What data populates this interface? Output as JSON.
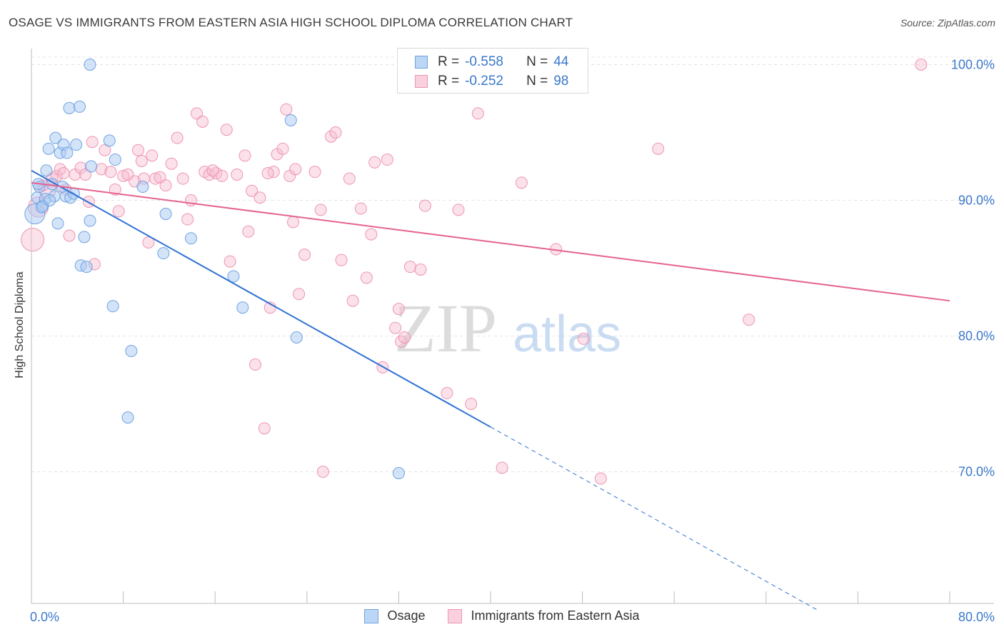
{
  "title": "OSAGE VS IMMIGRANTS FROM EASTERN ASIA HIGH SCHOOL DIPLOMA CORRELATION CHART",
  "source": "Source: ZipAtlas.com",
  "watermark": {
    "zip": "ZIP",
    "atlas": "atlas"
  },
  "legend_top": {
    "rows": [
      {
        "r_label": "R =",
        "r_value": "-0.558",
        "n_label": "N =",
        "n_value": "44"
      },
      {
        "r_label": "R =",
        "r_value": "-0.252",
        "n_label": "N =",
        "n_value": "98"
      }
    ]
  },
  "legend_bottom": [
    {
      "label": "Osage"
    },
    {
      "label": "Immigrants from Eastern Asia"
    }
  ],
  "colors": {
    "osage_fill": "#a9c9f2",
    "osage_stroke": "#6fa3e3",
    "osage_line": "#2f72d4",
    "asia_fill": "#f7bdd0",
    "asia_stroke": "#ee95b3",
    "asia_line": "#e5628f",
    "tick_label": "#3a78cc",
    "grid": "#e3e3e3"
  },
  "chart_data": {
    "type": "scatter",
    "title": "OSAGE VS IMMIGRANTS FROM EASTERN ASIA HIGH SCHOOL DIPLOMA CORRELATION CHART",
    "xlabel": "",
    "ylabel": "High School Diploma",
    "xlim": [
      0,
      80
    ],
    "ylim": [
      60.3,
      101.5
    ],
    "x_tick_labels": [
      "0.0%",
      "80.0%"
    ],
    "y_ticks": [
      70,
      80,
      90,
      100
    ],
    "y_tick_labels": [
      "70.0%",
      "80.0%",
      "90.0%",
      "100.0%"
    ],
    "grid": true,
    "legend_placement": "top-center",
    "series": [
      {
        "name": "Osage",
        "r": -0.558,
        "n": 44,
        "trend": {
          "x0": 0,
          "y0": 92.2,
          "x1": 40,
          "y1": 73.3,
          "dash_to_x": 68.5,
          "dash_to_y": 59.8
        },
        "points": [
          [
            0.3,
            89.0,
            14
          ],
          [
            0.5,
            90.2,
            8
          ],
          [
            0.7,
            91.0,
            8
          ],
          [
            1.0,
            89.6,
            8
          ],
          [
            1.2,
            90.1,
            8
          ],
          [
            1.3,
            92.2,
            8
          ],
          [
            1.5,
            93.8,
            8
          ],
          [
            1.8,
            91.2,
            8
          ],
          [
            2.0,
            90.3,
            8
          ],
          [
            2.1,
            94.6,
            8
          ],
          [
            2.3,
            88.3,
            8
          ],
          [
            2.5,
            93.5,
            8
          ],
          [
            2.8,
            94.1,
            8
          ],
          [
            3.0,
            90.3,
            8
          ],
          [
            3.1,
            93.5,
            8
          ],
          [
            3.4,
            90.2,
            8
          ],
          [
            3.3,
            96.8,
            8
          ],
          [
            3.9,
            94.1,
            8
          ],
          [
            4.2,
            96.9,
            8
          ],
          [
            4.3,
            85.2,
            8
          ],
          [
            4.6,
            87.3,
            8
          ],
          [
            4.8,
            85.1,
            8
          ],
          [
            5.1,
            88.5,
            8
          ],
          [
            5.2,
            92.5,
            8
          ],
          [
            6.8,
            94.4,
            8
          ],
          [
            7.1,
            82.2,
            8
          ],
          [
            7.3,
            93.0,
            8
          ],
          [
            8.4,
            74.0,
            8
          ],
          [
            8.7,
            78.9,
            8
          ],
          [
            9.7,
            91.0,
            8
          ],
          [
            11.5,
            86.1,
            8
          ],
          [
            11.7,
            89.0,
            8
          ],
          [
            13.9,
            87.2,
            8
          ],
          [
            17.6,
            84.4,
            8
          ],
          [
            18.4,
            82.1,
            8
          ],
          [
            22.6,
            95.9,
            8
          ],
          [
            23.1,
            79.9,
            8
          ],
          [
            32.0,
            69.9,
            8
          ],
          [
            5.1,
            100.0,
            8
          ],
          [
            0.6,
            91.2,
            8
          ],
          [
            1.6,
            90.0,
            8
          ],
          [
            2.7,
            91.0,
            8
          ],
          [
            0.9,
            89.5,
            8
          ],
          [
            3.7,
            90.5,
            8
          ]
        ]
      },
      {
        "name": "Immigrants from Eastern Asia",
        "r": -0.252,
        "n": 98,
        "trend": {
          "x0": 0,
          "y0": 91.3,
          "x1": 80,
          "y1": 82.6
        },
        "points": [
          [
            0.1,
            87.1,
            16
          ],
          [
            0.6,
            89.5,
            14
          ],
          [
            1.4,
            90.8,
            12
          ],
          [
            1.8,
            91.6,
            8
          ],
          [
            2.2,
            91.8,
            8
          ],
          [
            2.5,
            92.3,
            8
          ],
          [
            2.8,
            92.0,
            8
          ],
          [
            3.3,
            87.4,
            8
          ],
          [
            3.8,
            91.9,
            8
          ],
          [
            4.3,
            92.4,
            8
          ],
          [
            4.7,
            91.9,
            8
          ],
          [
            5.0,
            89.9,
            8
          ],
          [
            5.3,
            94.3,
            8
          ],
          [
            5.5,
            85.3,
            8
          ],
          [
            6.1,
            92.3,
            8
          ],
          [
            6.4,
            93.7,
            8
          ],
          [
            6.9,
            92.1,
            8
          ],
          [
            7.3,
            90.8,
            8
          ],
          [
            7.6,
            89.2,
            8
          ],
          [
            8.0,
            91.8,
            8
          ],
          [
            8.4,
            91.9,
            8
          ],
          [
            9.0,
            91.4,
            8
          ],
          [
            9.3,
            93.7,
            8
          ],
          [
            9.6,
            92.9,
            8
          ],
          [
            10.2,
            86.9,
            8
          ],
          [
            10.5,
            93.3,
            8
          ],
          [
            10.8,
            91.6,
            8
          ],
          [
            11.2,
            91.7,
            8
          ],
          [
            11.7,
            91.1,
            8
          ],
          [
            12.2,
            92.7,
            8
          ],
          [
            12.7,
            94.6,
            8
          ],
          [
            13.2,
            91.6,
            8
          ],
          [
            13.6,
            88.6,
            8
          ],
          [
            13.9,
            90.0,
            8
          ],
          [
            14.4,
            96.4,
            8
          ],
          [
            14.9,
            95.8,
            8
          ],
          [
            15.1,
            92.1,
            8
          ],
          [
            15.5,
            91.9,
            8
          ],
          [
            16.1,
            92.0,
            8
          ],
          [
            16.6,
            91.8,
            8
          ],
          [
            17.0,
            95.2,
            8
          ],
          [
            17.3,
            85.5,
            8
          ],
          [
            17.9,
            91.9,
            8
          ],
          [
            18.6,
            93.3,
            8
          ],
          [
            18.9,
            87.7,
            8
          ],
          [
            19.2,
            90.7,
            8
          ],
          [
            19.5,
            77.9,
            8
          ],
          [
            19.9,
            90.2,
            8
          ],
          [
            20.3,
            73.2,
            8
          ],
          [
            20.8,
            82.1,
            8
          ],
          [
            21.1,
            92.1,
            8
          ],
          [
            21.4,
            93.4,
            8
          ],
          [
            21.9,
            93.8,
            8
          ],
          [
            22.2,
            96.7,
            8
          ],
          [
            22.5,
            91.8,
            8
          ],
          [
            22.8,
            88.4,
            8
          ],
          [
            23.0,
            92.3,
            8
          ],
          [
            23.3,
            83.1,
            8
          ],
          [
            23.8,
            86.0,
            8
          ],
          [
            24.7,
            92.1,
            8
          ],
          [
            25.2,
            89.3,
            8
          ],
          [
            25.4,
            70.0,
            8
          ],
          [
            26.1,
            94.7,
            8
          ],
          [
            27.0,
            85.6,
            8
          ],
          [
            27.7,
            91.6,
            8
          ],
          [
            28.0,
            82.6,
            8
          ],
          [
            28.7,
            89.4,
            8
          ],
          [
            29.2,
            84.3,
            8
          ],
          [
            29.6,
            87.5,
            8
          ],
          [
            29.9,
            92.8,
            8
          ],
          [
            30.6,
            77.7,
            8
          ],
          [
            31.0,
            93.0,
            8
          ],
          [
            31.7,
            80.6,
            8
          ],
          [
            32.2,
            79.6,
            8
          ],
          [
            32.5,
            79.9,
            8
          ],
          [
            33.0,
            85.1,
            8
          ],
          [
            33.9,
            84.9,
            8
          ],
          [
            34.3,
            89.6,
            8
          ],
          [
            36.2,
            75.8,
            8
          ],
          [
            37.2,
            89.3,
            8
          ],
          [
            38.3,
            75.0,
            8
          ],
          [
            38.9,
            96.4,
            8
          ],
          [
            41.0,
            70.3,
            8
          ],
          [
            42.7,
            91.3,
            8
          ],
          [
            45.7,
            86.4,
            8
          ],
          [
            48.1,
            79.8,
            8
          ],
          [
            49.6,
            69.5,
            8
          ],
          [
            54.6,
            93.8,
            8
          ],
          [
            62.5,
            81.2,
            8
          ],
          [
            77.5,
            100.0,
            8
          ],
          [
            37.8,
            100.0,
            8
          ],
          [
            32.0,
            82.0,
            8
          ],
          [
            26.5,
            95.0,
            8
          ],
          [
            20.6,
            92.0,
            8
          ],
          [
            15.8,
            92.2,
            8
          ],
          [
            9.8,
            91.6,
            8
          ],
          [
            3.0,
            90.8,
            8
          ],
          [
            1.0,
            91.1,
            8
          ]
        ]
      }
    ]
  }
}
